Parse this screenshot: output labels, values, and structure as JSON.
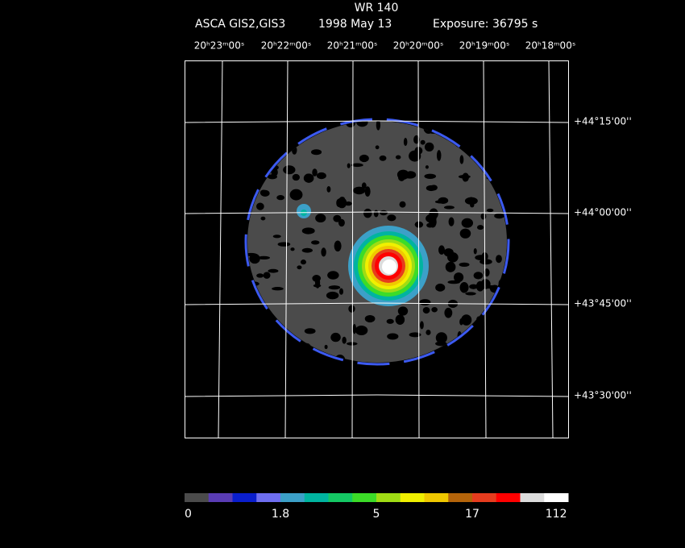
{
  "header": {
    "title": "WR 140",
    "instrument": "ASCA GIS2,GIS3",
    "date": "1998 May 13",
    "exposure": "Exposure: 36795 s"
  },
  "ra_labels": [
    "20ʰ23ᵐ00ˢ",
    "20ʰ22ᵐ00ˢ",
    "20ʰ21ᵐ00ˢ",
    "20ʰ20ᵐ00ˢ",
    "20ʰ19ᵐ00ˢ",
    "20ʰ18ᵐ00ˢ"
  ],
  "dec_labels": [
    "+44°15'00''",
    "+44°00'00''",
    "+43°45'00''",
    "+43°30'00''"
  ],
  "colorbar": {
    "labels": [
      "0",
      "1.8",
      "5",
      "17",
      "112"
    ],
    "colors": [
      "#4b4b4b",
      "#5a3cb4",
      "#0a1ecd",
      "#6e6ef0",
      "#3ca0c8",
      "#00b4a0",
      "#14c864",
      "#3cdc28",
      "#a0dc14",
      "#f0f000",
      "#f0c800",
      "#b4640a",
      "#e63c1e",
      "#ff0000",
      "#dcdcdc",
      "#ffffff"
    ]
  }
}
